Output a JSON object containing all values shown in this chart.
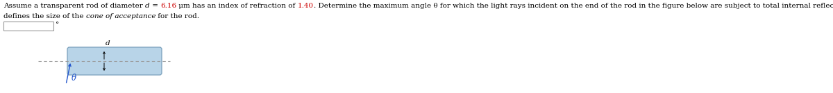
{
  "highlight_color": "#cc0000",
  "normal_color": "#000000",
  "rod_fill_color": "#b8d4e8",
  "rod_edge_color": "#7aa0bc",
  "dashed_line_color": "#999999",
  "arrow_color": "#2255cc",
  "theta_color": "#2255cc",
  "font_size_main": 7.5,
  "line1_parts": [
    [
      "Assume a transparent rod of diameter ",
      "#000000",
      "normal"
    ],
    [
      "d",
      "#000000",
      "italic"
    ],
    [
      " = ",
      "#000000",
      "normal"
    ],
    [
      "6.16",
      "#cc0000",
      "normal"
    ],
    [
      " μm has an index of refraction of ",
      "#000000",
      "normal"
    ],
    [
      "1.40",
      "#cc0000",
      "normal"
    ],
    [
      ". Determine the maximum angle θ for which the light rays incident on the end of the rod in the figure below are subject to total internal reflection along the walls of the rod. Your answer",
      "#000000",
      "normal"
    ]
  ],
  "line2_parts": [
    [
      "defines the size of the ",
      "#000000",
      "normal"
    ],
    [
      "cone of acceptance",
      "#000000",
      "italic"
    ],
    [
      " for the rod.",
      "#000000",
      "normal"
    ]
  ]
}
